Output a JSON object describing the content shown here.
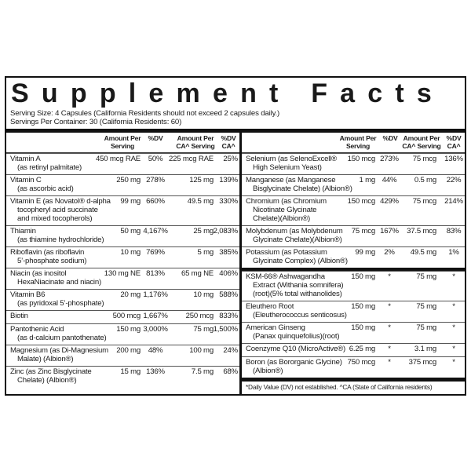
{
  "title": "Supplement Facts",
  "serving_size": "Serving Size: 4 Capsules (California Residents should not exceed 2 capsules daily.)",
  "servings_per_container": "Servings Per Container: 30 (California Residents: 60)",
  "left": {
    "columns": [
      [
        "Amount Per",
        "Serving"
      ],
      [
        "%DV"
      ],
      [
        "Amount Per",
        "CA^ Serving"
      ],
      [
        "%DV",
        "CA^"
      ]
    ],
    "rows": [
      {
        "name": [
          "Vitamin A",
          "(as retinyl palmitate)"
        ],
        "amount": "450 mcg RAE",
        "dv": "50%",
        "ca_amount": "225 mcg RAE",
        "ca_dv": "25%"
      },
      {
        "name": [
          "Vitamin C",
          "(as ascorbic acid)"
        ],
        "amount": "250 mg",
        "dv": "278%",
        "ca_amount": "125 mg",
        "ca_dv": "139%"
      },
      {
        "name": [
          "Vitamin E (as Novatol® d-alpha",
          "tocopheryl acid succinate",
          "and mixed tocopherols)"
        ],
        "amount": "99 mg",
        "dv": "660%",
        "ca_amount": "49.5 mg",
        "ca_dv": "330%"
      },
      {
        "name": [
          "Thiamin",
          "(as thiamine hydrochloride)"
        ],
        "amount": "50 mg",
        "dv": "4,167%",
        "ca_amount": "25 mg",
        "ca_dv": "2,083%"
      },
      {
        "name": [
          "Riboflavin (as riboflavin",
          "5’-phosphate sodium)"
        ],
        "amount": "10 mg",
        "dv": "769%",
        "ca_amount": "5 mg",
        "ca_dv": "385%"
      },
      {
        "name": [
          "Niacin (as inositol",
          "HexaNiacinate and niacin)"
        ],
        "amount": "130 mg NE",
        "dv": "813%",
        "ca_amount": "65 mg NE",
        "ca_dv": "406%"
      },
      {
        "name": [
          "Vitamin B6",
          "(as pyridoxal 5’-phosphate)"
        ],
        "amount": "20 mg",
        "dv": "1,176%",
        "ca_amount": "10 mg",
        "ca_dv": "588%"
      },
      {
        "name": [
          "Biotin"
        ],
        "amount": "500 mcg",
        "dv": "1,667%",
        "ca_amount": "250 mcg",
        "ca_dv": "833%"
      },
      {
        "name": [
          "Pantothenic Acid",
          "(as d-calcium pantothenate)"
        ],
        "amount": "150 mg",
        "dv": "3,000%",
        "ca_amount": "75 mg",
        "ca_dv": "1,500%"
      },
      {
        "name": [
          "Magnesium (as Di-Magnesium",
          "Malate) (Albion®)"
        ],
        "amount": "200 mg",
        "dv": "48%",
        "ca_amount": "100 mg",
        "ca_dv": "24%"
      },
      {
        "name": [
          "Zinc (as Zinc Bisglycinate",
          "Chelate) (Albion®)"
        ],
        "amount": "15 mg",
        "dv": "136%",
        "ca_amount": "7.5 mg",
        "ca_dv": "68%"
      }
    ]
  },
  "right": {
    "columns": [
      [
        "Amount Per",
        "Serving"
      ],
      [
        "%DV"
      ],
      [
        "Amount Per",
        "CA^ Serving"
      ],
      [
        "%DV",
        "CA^"
      ]
    ],
    "groups": [
      [
        {
          "name": [
            "Selenium (as SelenoExcell®",
            "High Selenium Yeast)"
          ],
          "amount": "150 mcg",
          "dv": "273%",
          "ca_amount": "75 mcg",
          "ca_dv": "136%"
        },
        {
          "name": [
            "Manganese (as Manganese",
            "Bisglycinate Chelate) (Albion®)"
          ],
          "amount": "1 mg",
          "dv": "44%",
          "ca_amount": "0.5 mg",
          "ca_dv": "22%"
        },
        {
          "name": [
            "Chromium (as Chromium",
            "Nicotinate Glycinate",
            "Chelate)(Albion®)"
          ],
          "amount": "150 mcg",
          "dv": "429%",
          "ca_amount": "75 mcg",
          "ca_dv": "214%"
        },
        {
          "name": [
            "Molybdenum (as Molybdenum",
            "Glycinate Chelate)(Albion®)"
          ],
          "amount": "75 mcg",
          "dv": "167%",
          "ca_amount": "37.5 mcg",
          "ca_dv": "83%"
        },
        {
          "name": [
            "Potassium (as Potassium",
            "Glycinate Complex) (Albion®)"
          ],
          "amount": "99 mg",
          "dv": "2%",
          "ca_amount": "49.5 mg",
          "ca_dv": "1%"
        }
      ],
      [
        {
          "name": [
            "KSM-66® Ashwagandha",
            "Extract (Withania somnifera)",
            "(root)(5% total withanolides)"
          ],
          "amount": "150 mg",
          "dv": "*",
          "ca_amount": "75 mg",
          "ca_dv": "*"
        },
        {
          "name": [
            "Eleuthero Root",
            "(Eleutherococcus senticosus)"
          ],
          "amount": "150 mg",
          "dv": "*",
          "ca_amount": "75 mg",
          "ca_dv": "*"
        },
        {
          "name": [
            "American Ginseng",
            "(Panax quinquefolius)(root)"
          ],
          "amount": "150 mg",
          "dv": "*",
          "ca_amount": "75 mg",
          "ca_dv": "*"
        },
        {
          "name": [
            "Coenzyme Q10 (MicroActive®)"
          ],
          "amount": "6.25 mg",
          "dv": "*",
          "ca_amount": "3.1 mg",
          "ca_dv": "*"
        },
        {
          "name": [
            "Boron (as Bororganic Glycine)",
            "(Albion®)"
          ],
          "amount": "750 mcg",
          "dv": "*",
          "ca_amount": "375 mcg",
          "ca_dv": "*"
        }
      ]
    ],
    "footnote": "*Daily Value (DV) not established. ^CA (State of California residents)"
  }
}
